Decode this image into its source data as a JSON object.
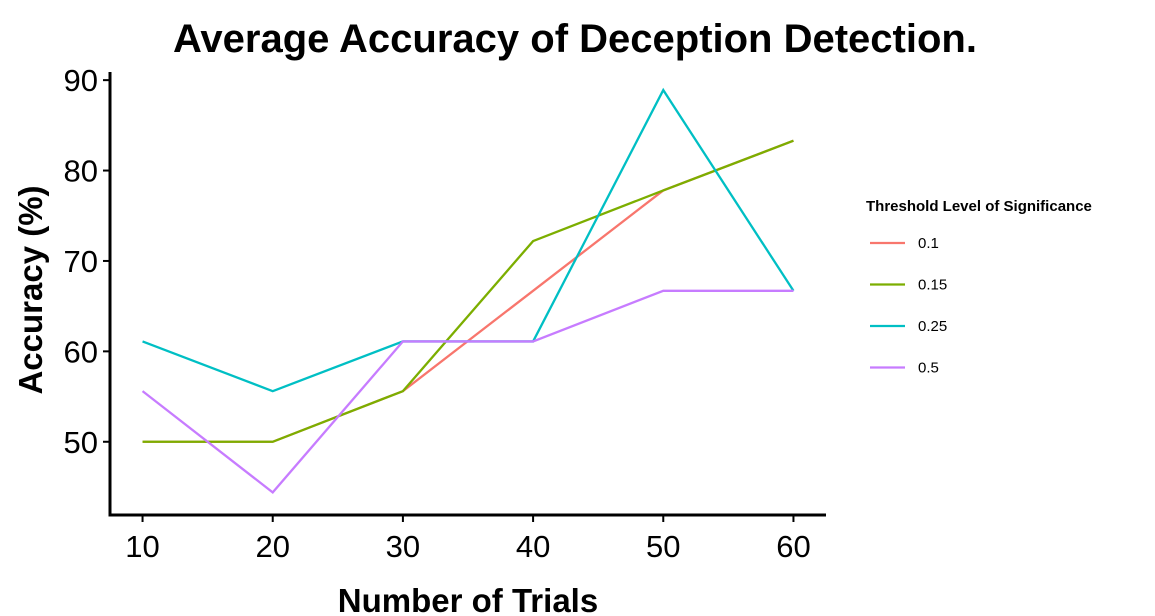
{
  "chart_data": {
    "type": "line",
    "title": "Average Accuracy of Deception Detection.",
    "x_label": "Number of Trials",
    "y_label": "Accuracy (%)",
    "legend_title": "Threshold Level of Significance",
    "legend_position": "right",
    "grid": false,
    "x": [
      10,
      20,
      30,
      40,
      50,
      60
    ],
    "xlim": [
      7.5,
      62.5
    ],
    "xticks": [
      10,
      20,
      30,
      40,
      50,
      60
    ],
    "ylim": [
      41.9,
      90.9
    ],
    "yticks": [
      50,
      60,
      70,
      80,
      90
    ],
    "series": [
      {
        "name": "0.1",
        "color": "#F8766D",
        "values": [
          50,
          50,
          55.6,
          66.7,
          77.8,
          83.3
        ]
      },
      {
        "name": "0.15",
        "color": "#7CAE00",
        "values": [
          50,
          50,
          55.6,
          72.2,
          77.8,
          83.3
        ]
      },
      {
        "name": "0.25",
        "color": "#00BFC4",
        "values": [
          61.1,
          55.6,
          61.1,
          61.1,
          88.9,
          66.7
        ]
      },
      {
        "name": "0.5",
        "color": "#C77CFF",
        "values": [
          55.6,
          44.4,
          61.1,
          61.1,
          66.7,
          66.7
        ]
      }
    ]
  }
}
